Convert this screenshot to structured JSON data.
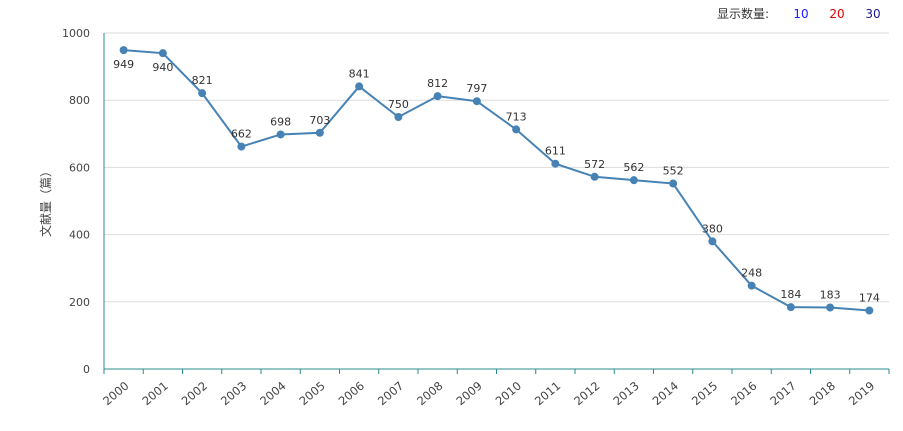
{
  "controls": {
    "label": "显示数量:",
    "options": [
      {
        "text": "10",
        "color": "#1a1aff"
      },
      {
        "text": "20",
        "color": "#e00000"
      },
      {
        "text": "30",
        "color": "#1a1a99"
      }
    ]
  },
  "chart_data": {
    "type": "line",
    "title": "",
    "xlabel": "",
    "ylabel": "文献量（篇）",
    "ylim": [
      0,
      1000
    ],
    "yticks": [
      "0",
      "200",
      "400",
      "600",
      "800",
      "1000"
    ],
    "categories": [
      "2000",
      "2001",
      "2002",
      "2003",
      "2004",
      "2005",
      "2006",
      "2007",
      "2008",
      "2009",
      "2010",
      "2011",
      "2012",
      "2013",
      "2014",
      "2015",
      "2016",
      "2017",
      "2018",
      "2019"
    ],
    "series": [
      {
        "values": [
          949,
          940,
          821,
          662,
          698,
          703,
          841,
          750,
          812,
          797,
          713,
          611,
          572,
          562,
          552,
          380,
          248,
          184,
          183,
          174
        ]
      }
    ],
    "grid": true,
    "colors": {
      "line": "#4682b4",
      "axis": "#2e8b8b",
      "grid": "#dddddd"
    }
  }
}
